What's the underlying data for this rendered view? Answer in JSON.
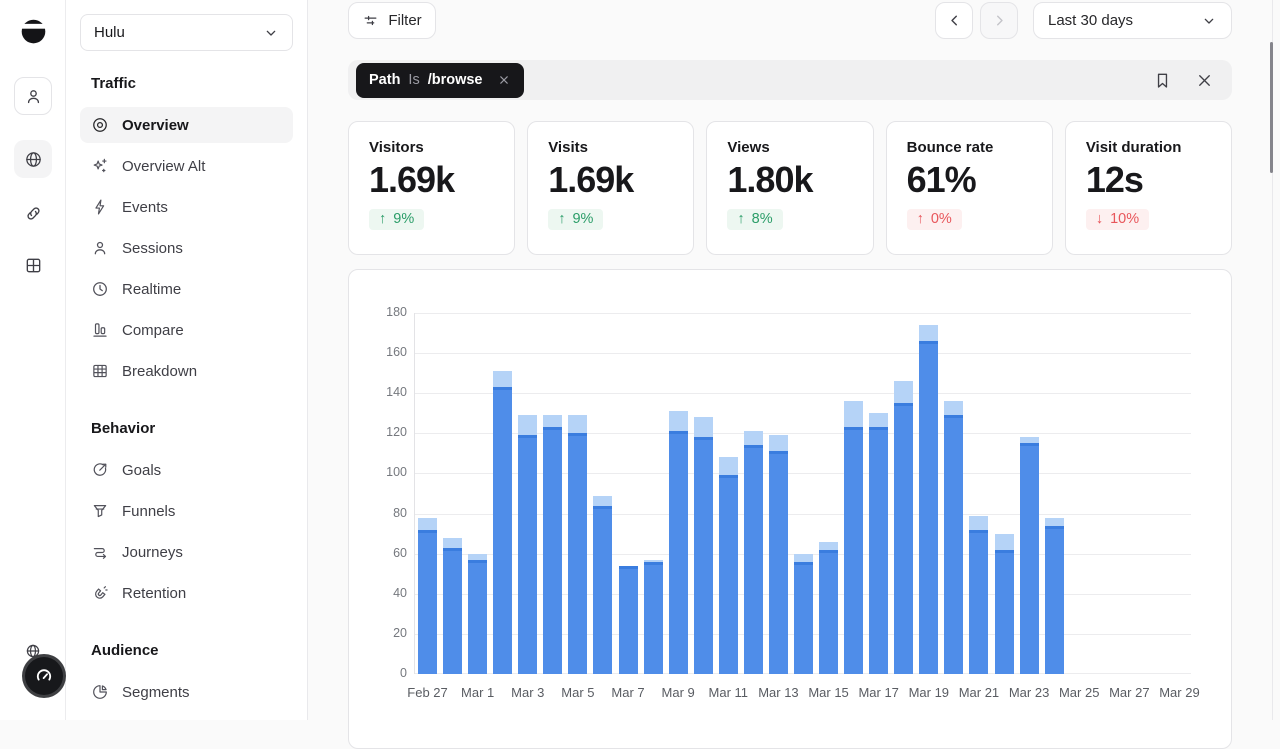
{
  "sidebar": {
    "site_selector": {
      "value": "Hulu",
      "icon": "chevron-down-icon"
    },
    "sections": [
      {
        "title": "Traffic",
        "items": [
          {
            "label": "Overview",
            "icon": "eye-icon",
            "active": true
          },
          {
            "label": "Overview Alt",
            "icon": "sparkles-icon"
          },
          {
            "label": "Events",
            "icon": "lightning-icon"
          },
          {
            "label": "Sessions",
            "icon": "person-icon"
          },
          {
            "label": "Realtime",
            "icon": "clock-icon"
          },
          {
            "label": "Compare",
            "icon": "bar-columns-icon"
          },
          {
            "label": "Breakdown",
            "icon": "table-icon"
          }
        ]
      },
      {
        "title": "Behavior",
        "items": [
          {
            "label": "Goals",
            "icon": "goal-arrow-icon"
          },
          {
            "label": "Funnels",
            "icon": "funnel-icon"
          },
          {
            "label": "Journeys",
            "icon": "route-icon"
          },
          {
            "label": "Retention",
            "icon": "magnet-icon"
          }
        ]
      },
      {
        "title": "Audience",
        "items": [
          {
            "label": "Segments",
            "icon": "pie-chart-icon"
          }
        ]
      }
    ]
  },
  "topbar": {
    "filter_button": "Filter",
    "date_range": "Last 30 days"
  },
  "filter_bar": {
    "chip": {
      "field": "Path",
      "operator": "Is",
      "value": "/browse"
    }
  },
  "stat_cards": [
    {
      "label": "Visitors",
      "value": "1.69k",
      "arrow": "↑",
      "change": "9%",
      "tone": "positive"
    },
    {
      "label": "Visits",
      "value": "1.69k",
      "arrow": "↑",
      "change": "9%",
      "tone": "positive"
    },
    {
      "label": "Views",
      "value": "1.80k",
      "arrow": "↑",
      "change": "8%",
      "tone": "positive"
    },
    {
      "label": "Bounce rate",
      "value": "61%",
      "arrow": "↑",
      "change": "0%",
      "tone": "negative"
    },
    {
      "label": "Visit duration",
      "value": "12s",
      "arrow": "↓",
      "change": "10%",
      "tone": "negative"
    }
  ],
  "colors": {
    "bar_main": "#4f8de9",
    "bar_overlap_edge": "#3a7ddf",
    "bar_light": "#b5d3f7",
    "positive": "#2b9d68",
    "positive_bg": "#edf7f1",
    "negative": "#e8565b",
    "negative_bg": "#fdf0f0",
    "chip_bg": "#17171a"
  },
  "chart_data": {
    "type": "bar",
    "title": "",
    "xlabel": "",
    "ylabel": "",
    "x": [
      "Feb 27",
      "Feb 28",
      "Mar 1",
      "Mar 2",
      "Mar 3",
      "Mar 4",
      "Mar 5",
      "Mar 6",
      "Mar 7",
      "Mar 8",
      "Mar 9",
      "Mar 10",
      "Mar 11",
      "Mar 12",
      "Mar 13",
      "Mar 14",
      "Mar 15",
      "Mar 16",
      "Mar 17",
      "Mar 18",
      "Mar 19",
      "Mar 20",
      "Mar 21",
      "Mar 22",
      "Mar 23",
      "Mar 24",
      "Mar 25",
      "Mar 26",
      "Mar 27",
      "Mar 28",
      "Mar 29"
    ],
    "x_tick_step": 2,
    "series": [
      {
        "name": "total-light",
        "color": "#b5d3f7",
        "values": [
          78,
          68,
          60,
          151,
          129,
          129,
          129,
          89,
          54,
          57,
          131,
          128,
          108,
          121,
          119,
          60,
          66,
          136,
          130,
          146,
          174,
          136,
          79,
          70,
          118,
          78,
          0,
          0,
          0,
          0,
          0
        ]
      },
      {
        "name": "main-dark",
        "color": "#4f8de9",
        "values": [
          72,
          63,
          57,
          143,
          119,
          123,
          120,
          84,
          54,
          56,
          121,
          118,
          99,
          114,
          111,
          56,
          62,
          123,
          123,
          135,
          166,
          129,
          72,
          62,
          115,
          74,
          0,
          0,
          0,
          0,
          0
        ]
      }
    ],
    "ylim": [
      0,
      180
    ],
    "y_ticks": [
      0,
      20,
      40,
      60,
      80,
      100,
      120,
      140,
      160,
      180
    ],
    "grid": true,
    "legend": "none"
  }
}
